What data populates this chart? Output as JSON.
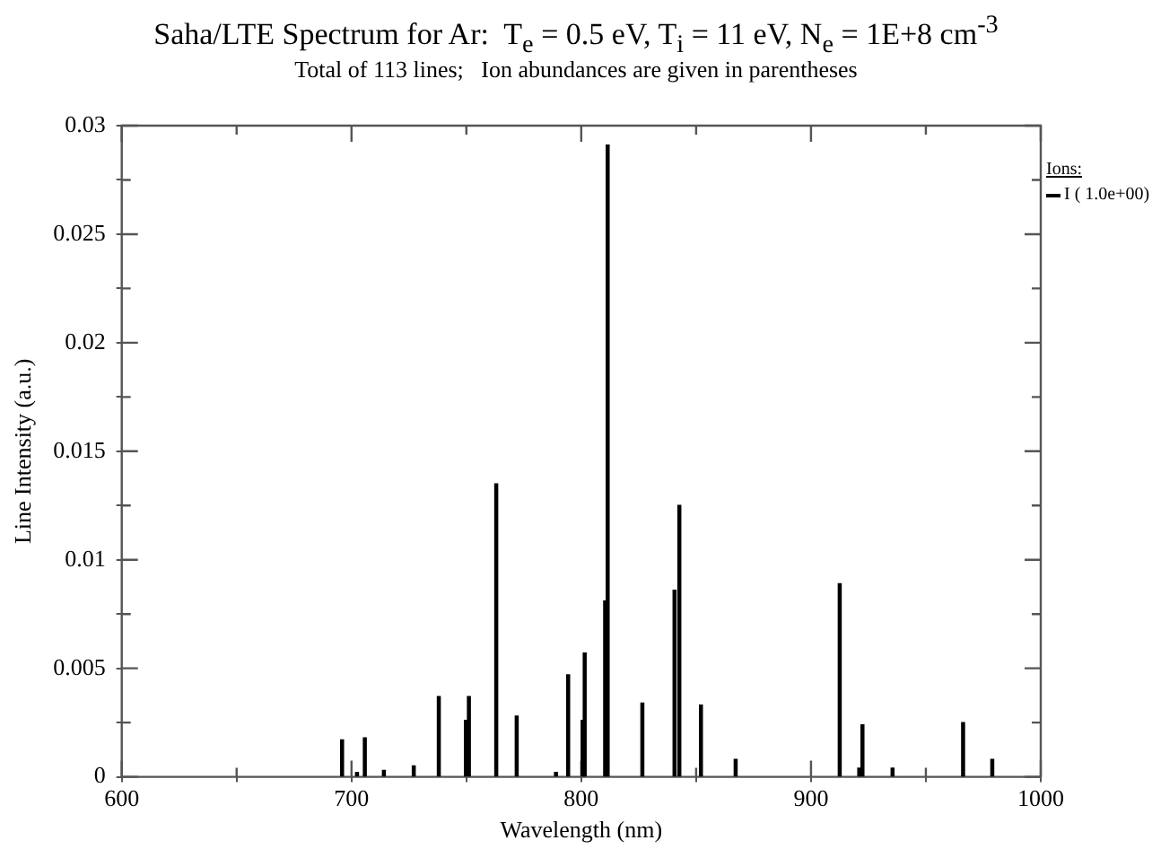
{
  "chart_data": {
    "type": "bar",
    "title": "Saha/LTE Spectrum for Ar:  T$_{e}$ = 0.5 eV, T$_{i}$ = 11 eV, N$_{e}$ = 1E+8 cm$^{-3}$",
    "subtitle": "Total of 113 lines;   Ion abundances are given in parentheses",
    "xlabel": "Wavelength (nm)",
    "ylabel": "Line Intensity (a.u.)",
    "legend_title": "Ions:",
    "legend": "right",
    "grid": false,
    "x": [
      695.9,
      702.4,
      705.8,
      714.1,
      727.1,
      738.0,
      749.8,
      751.1,
      763.0,
      771.9,
      789.0,
      794.3,
      800.6,
      801.5,
      810.4,
      811.5,
      826.6,
      840.6,
      842.7,
      852.1,
      867.2,
      912.5,
      921.0,
      922.4,
      935.5,
      966.2,
      978.9
    ],
    "series": [
      {
        "name": "I ( 1.0e+00)",
        "color": "#000000",
        "values": [
          0.0017,
          0.0002,
          0.0018,
          0.0003,
          0.0005,
          0.0037,
          0.0026,
          0.0037,
          0.0135,
          0.0028,
          0.0002,
          0.0047,
          0.0026,
          0.0057,
          0.0081,
          0.0291,
          0.0034,
          0.0086,
          0.0125,
          0.0033,
          0.0008,
          0.0089,
          0.0004,
          0.0024,
          0.0004,
          0.0025,
          0.0008
        ]
      }
    ],
    "xlim": [
      600,
      1000
    ],
    "xticks": [
      600,
      {
        "value": 650,
        "label": null
      },
      700,
      {
        "value": 750,
        "label": null
      },
      800,
      {
        "value": 850,
        "label": null
      },
      900,
      {
        "value": 950,
        "label": null
      },
      1000
    ],
    "ylim": [
      0,
      0.03
    ],
    "yticks": [
      0,
      {
        "value": 0.0025,
        "label": null
      },
      0.005,
      {
        "value": 0.0075,
        "label": null
      },
      0.01,
      {
        "value": 0.0125,
        "label": null
      },
      0.015,
      {
        "value": 0.0175,
        "label": null
      },
      0.02,
      {
        "value": 0.0225,
        "label": null
      },
      0.025,
      {
        "value": 0.0275,
        "label": null
      },
      0.03
    ]
  }
}
